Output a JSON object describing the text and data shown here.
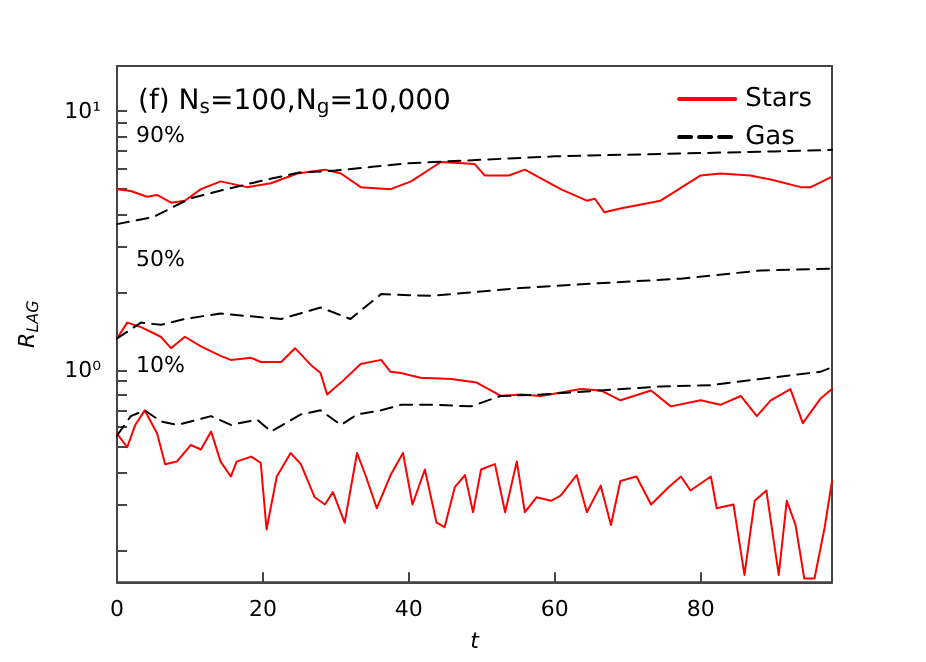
{
  "chart_data": {
    "type": "line",
    "title": "(f) N$_{s}$=100,N$_{g}$=10,000",
    "xlabel": "t",
    "ylabel": "R$_{LAG}$",
    "log": "y",
    "grid": false,
    "legend": "top right",
    "marker": "none",
    "xlim": [
      0,
      98
    ],
    "xticks": [
      0,
      20,
      40,
      60,
      80
    ],
    "ylim": [
      0.15,
      15
    ],
    "yticks": [
      {
        "value": 0.2,
        "label": null
      },
      {
        "value": 0.3,
        "label": null
      },
      {
        "value": 0.4,
        "label": null
      },
      {
        "value": 0.5,
        "label": null
      },
      {
        "value": 0.6,
        "label": null
      },
      {
        "value": 0.7,
        "label": null
      },
      {
        "value": 0.8,
        "label": null
      },
      {
        "value": 0.9,
        "label": null
      },
      {
        "value": 1,
        "label": "10⁰"
      },
      {
        "value": 2,
        "label": null
      },
      {
        "value": 3,
        "label": null
      },
      {
        "value": 4,
        "label": null
      },
      {
        "value": 5,
        "label": null
      },
      {
        "value": 6,
        "label": null
      },
      {
        "value": 7,
        "label": null
      },
      {
        "value": 8,
        "label": null
      },
      {
        "value": 9,
        "label": null
      },
      {
        "value": 10,
        "label": "10¹"
      }
    ],
    "annotations": [
      "90%",
      "50%",
      "10%"
    ],
    "series": [
      {
        "name": "Stars",
        "color": "#ff0000",
        "line_style": "solid",
        "x": [
          0,
          1.9,
          4.1,
          5.5,
          7.4,
          9.3,
          11.5,
          14.2,
          17.8,
          21.1,
          24.7,
          28.5,
          30.7,
          33.4,
          37.5,
          40.3,
          44.4,
          49.0,
          50.4,
          53.7,
          55.9,
          60.8,
          64.4,
          65.5,
          66.8,
          69.0,
          74.5,
          80.0,
          82.7,
          86.8,
          89.6,
          93.7,
          95.1,
          97.8
        ],
        "values": [
          5.0,
          4.92,
          4.67,
          4.75,
          4.43,
          4.51,
          5.0,
          5.36,
          5.09,
          5.27,
          5.75,
          5.95,
          5.75,
          5.09,
          5.0,
          5.36,
          6.37,
          6.26,
          5.65,
          5.65,
          5.95,
          5.0,
          4.51,
          4.59,
          4.07,
          4.21,
          4.51,
          5.65,
          5.75,
          5.65,
          5.45,
          5.09,
          5.09,
          5.55
        ]
      },
      {
        "name": "Gas",
        "color": "#000000",
        "line_style": "dashed",
        "x": [
          0,
          5,
          10,
          15,
          20,
          25,
          30,
          35,
          40,
          50,
          60,
          70,
          80,
          90,
          98
        ],
        "values": [
          3.66,
          3.9,
          4.6,
          5.0,
          5.4,
          5.8,
          5.9,
          6.1,
          6.3,
          6.5,
          6.7,
          6.8,
          6.9,
          7.0,
          7.1
        ]
      },
      {
        "color": "#ff0000",
        "line_style": "solid",
        "x": [
          0,
          1.4,
          3.3,
          6,
          7.4,
          9.3,
          11.5,
          14.2,
          15.6,
          18.4,
          19.7,
          22.5,
          24.4,
          26.6,
          27.9,
          28.8,
          30.7,
          33.4,
          36.2,
          37.5,
          38.9,
          41.6,
          45.8,
          49.3,
          52.6,
          55.3,
          58.1,
          63.6,
          66.3,
          69,
          73.2,
          75.9,
          80,
          82.7,
          85.5,
          87.7,
          89.6,
          92.3,
          94,
          96.4,
          98
        ],
        "values": [
          1.32,
          1.52,
          1.46,
          1.34,
          1.21,
          1.34,
          1.23,
          1.13,
          1.09,
          1.11,
          1.07,
          1.07,
          1.21,
          1.04,
          0.97,
          0.8,
          0.89,
          1.05,
          1.09,
          0.98,
          0.97,
          0.93,
          0.92,
          0.89,
          0.79,
          0.8,
          0.79,
          0.84,
          0.83,
          0.76,
          0.83,
          0.72,
          0.76,
          0.73,
          0.79,
          0.66,
          0.76,
          0.84,
          0.62,
          0.77,
          0.84
        ]
      },
      {
        "color": "#000000",
        "line_style": "dashed",
        "x": [
          0,
          3.3,
          6,
          9.3,
          14.2,
          17,
          22.5,
          27.9,
          32,
          36.2,
          43,
          55.3,
          63.6,
          77.3,
          88.2,
          97.8
        ],
        "values": [
          1.32,
          1.52,
          1.49,
          1.57,
          1.65,
          1.62,
          1.57,
          1.74,
          1.57,
          1.96,
          1.93,
          2.07,
          2.14,
          2.25,
          2.42,
          2.46
        ]
      },
      {
        "color": "#ff0000",
        "line_style": "solid",
        "x": [
          0,
          1.4,
          2.5,
          3.8,
          5.5,
          6.6,
          8.2,
          10.1,
          11.5,
          12.9,
          14.2,
          15.6,
          16.4,
          18.4,
          19.7,
          20.5,
          21.9,
          23.8,
          25.2,
          27.1,
          28.5,
          29.6,
          31.2,
          32.9,
          34.2,
          35.6,
          37.5,
          39.2,
          40.5,
          42.2,
          43.8,
          44.9,
          46.3,
          47.7,
          48.8,
          49.9,
          51.8,
          53.2,
          54.8,
          55.9,
          57.5,
          59.5,
          60.8,
          63,
          64.4,
          66.3,
          67.7,
          69,
          71.2,
          73.2,
          75.6,
          77.3,
          78.6,
          81.4,
          82.2,
          84.5,
          86,
          87.4,
          89,
          90.7,
          91.8,
          93,
          94.2,
          95.6,
          97,
          98
        ],
        "values": [
          0.565,
          0.5,
          0.61,
          0.695,
          0.565,
          0.43,
          0.44,
          0.51,
          0.49,
          0.575,
          0.44,
          0.385,
          0.44,
          0.46,
          0.435,
          0.24,
          0.385,
          0.475,
          0.43,
          0.32,
          0.3,
          0.335,
          0.255,
          0.475,
          0.38,
          0.29,
          0.39,
          0.475,
          0.3,
          0.41,
          0.255,
          0.245,
          0.35,
          0.39,
          0.28,
          0.41,
          0.43,
          0.28,
          0.44,
          0.28,
          0.32,
          0.31,
          0.325,
          0.39,
          0.28,
          0.355,
          0.25,
          0.37,
          0.385,
          0.3,
          0.35,
          0.385,
          0.34,
          0.385,
          0.29,
          0.3,
          0.16,
          0.31,
          0.34,
          0.16,
          0.31,
          0.25,
          0.155,
          0.155,
          0.245,
          0.37
        ]
      },
      {
        "color": "#000000",
        "line_style": "dashed",
        "x": [
          0,
          1.9,
          3.8,
          6,
          8.2,
          12.9,
          15.6,
          19.2,
          21.1,
          25.2,
          27.9,
          30.7,
          32.9,
          36.2,
          38.9,
          43.8,
          48.5,
          52.6,
          58.1,
          66.3,
          74.5,
          81.4,
          88.2,
          96.4,
          98
        ],
        "values": [
          0.555,
          0.66,
          0.695,
          0.63,
          0.61,
          0.66,
          0.61,
          0.64,
          0.575,
          0.67,
          0.695,
          0.61,
          0.67,
          0.695,
          0.73,
          0.73,
          0.72,
          0.79,
          0.8,
          0.83,
          0.86,
          0.87,
          0.92,
          0.98,
          1.02
        ]
      }
    ]
  }
}
